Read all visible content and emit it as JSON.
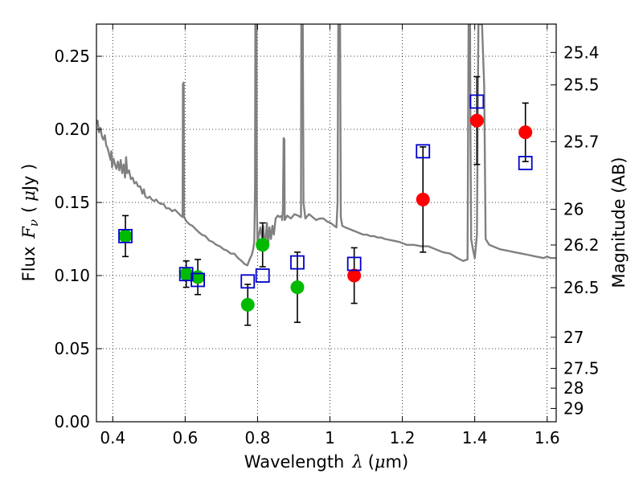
{
  "chart_data": {
    "type": "scatter",
    "xlabel": "Wavelength",
    "xlabel_symbol": "λ",
    "xlabel_unit_open": "(",
    "xlabel_unit_mu": "μ",
    "xlabel_unit_rest": "m)",
    "ylabel": "Flux",
    "ylabel_symbol": "F",
    "ylabel_sub": "ν",
    "ylabel_unit_open": "(",
    "ylabel_unit_mu": "μ",
    "ylabel_unit_rest": "Jy )",
    "y2label": "Magnitude (AB)",
    "xlim": [
      0.355,
      1.625
    ],
    "ylim": [
      0.0,
      0.272
    ],
    "grid": true,
    "legend": "none",
    "x_ticks": [
      0.4,
      0.6,
      0.8,
      1.0,
      1.2,
      1.4,
      1.6
    ],
    "x_tick_labels": [
      "0.4",
      "0.6",
      "0.8",
      "1",
      "1.2",
      "1.4",
      "1.6"
    ],
    "y_ticks": [
      0.0,
      0.05,
      0.1,
      0.15,
      0.2,
      0.25
    ],
    "y_tick_labels": [
      "0.00",
      "0.05",
      "0.10",
      "0.15",
      "0.20",
      "0.25"
    ],
    "mag_ticks": [
      {
        "label": "25.4",
        "flux": 0.2526
      },
      {
        "label": "25.5",
        "flux": 0.2304
      },
      {
        "label": "25.7",
        "flux": 0.1916
      },
      {
        "label": "26",
        "flux": 0.1453
      },
      {
        "label": "26.2",
        "flux": 0.1209
      },
      {
        "label": "26.5",
        "flux": 0.0917
      },
      {
        "label": "27",
        "flux": 0.0578
      },
      {
        "label": "27.5",
        "flux": 0.0365
      },
      {
        "label": "28",
        "flux": 0.023
      },
      {
        "label": "29",
        "flux": 0.0091
      }
    ],
    "colors": {
      "model": "#808080",
      "green": "#00bb00",
      "red": "#ff0000",
      "square": "#0000cc",
      "errorbar": "#000000"
    },
    "series": [
      {
        "marker": "square",
        "points": [
          {
            "x": 0.435,
            "y": 0.127
          },
          {
            "x": 0.603,
            "y": 0.101
          },
          {
            "x": 0.635,
            "y": 0.097
          },
          {
            "x": 0.773,
            "y": 0.096
          },
          {
            "x": 0.814,
            "y": 0.1
          },
          {
            "x": 0.91,
            "y": 0.109
          },
          {
            "x": 1.067,
            "y": 0.108
          },
          {
            "x": 1.257,
            "y": 0.185
          },
          {
            "x": 1.406,
            "y": 0.219
          },
          {
            "x": 1.54,
            "y": 0.177
          }
        ]
      },
      {
        "marker": "circle",
        "points": [
          {
            "x": 0.435,
            "y": 0.127,
            "err": 0.014,
            "color": "green"
          },
          {
            "x": 0.603,
            "y": 0.101,
            "err": 0.009,
            "color": "green"
          },
          {
            "x": 0.635,
            "y": 0.099,
            "err": 0.012,
            "color": "green"
          },
          {
            "x": 0.773,
            "y": 0.08,
            "err": 0.014,
            "color": "green"
          },
          {
            "x": 0.814,
            "y": 0.121,
            "err": 0.015,
            "color": "green"
          },
          {
            "x": 0.91,
            "y": 0.092,
            "err": 0.024,
            "color": "green"
          },
          {
            "x": 1.067,
            "y": 0.1,
            "err": 0.019,
            "color": "red"
          },
          {
            "x": 1.257,
            "y": 0.152,
            "err": 0.036,
            "color": "red"
          },
          {
            "x": 1.406,
            "y": 0.206,
            "err": 0.03,
            "color": "red"
          },
          {
            "x": 1.54,
            "y": 0.198,
            "err": 0.02,
            "color": "red"
          }
        ]
      },
      {
        "marker": "line",
        "points": [
          [
            0.355,
            0.204
          ],
          [
            0.358,
            0.206
          ],
          [
            0.362,
            0.198
          ],
          [
            0.366,
            0.201
          ],
          [
            0.37,
            0.195
          ],
          [
            0.374,
            0.193
          ],
          [
            0.378,
            0.196
          ],
          [
            0.382,
            0.189
          ],
          [
            0.386,
            0.187
          ],
          [
            0.39,
            0.183
          ],
          [
            0.394,
            0.179
          ],
          [
            0.396,
            0.185
          ],
          [
            0.398,
            0.174
          ],
          [
            0.402,
            0.18
          ],
          [
            0.406,
            0.176
          ],
          [
            0.41,
            0.173
          ],
          [
            0.414,
            0.178
          ],
          [
            0.418,
            0.172
          ],
          [
            0.422,
            0.179
          ],
          [
            0.426,
            0.17
          ],
          [
            0.43,
            0.176
          ],
          [
            0.434,
            0.167
          ],
          [
            0.437,
            0.181
          ],
          [
            0.44,
            0.17
          ],
          [
            0.445,
            0.172
          ],
          [
            0.45,
            0.166
          ],
          [
            0.455,
            0.167
          ],
          [
            0.46,
            0.163
          ],
          [
            0.465,
            0.164
          ],
          [
            0.47,
            0.161
          ],
          [
            0.476,
            0.161
          ],
          [
            0.482,
            0.156
          ],
          [
            0.486,
            0.159
          ],
          [
            0.49,
            0.154
          ],
          [
            0.496,
            0.153
          ],
          [
            0.502,
            0.154
          ],
          [
            0.508,
            0.152
          ],
          [
            0.514,
            0.151
          ],
          [
            0.52,
            0.152
          ],
          [
            0.526,
            0.15
          ],
          [
            0.532,
            0.149
          ],
          [
            0.54,
            0.149
          ],
          [
            0.548,
            0.146
          ],
          [
            0.556,
            0.146
          ],
          [
            0.564,
            0.144
          ],
          [
            0.572,
            0.145
          ],
          [
            0.58,
            0.143
          ],
          [
            0.588,
            0.141
          ],
          [
            0.593,
            0.14
          ],
          [
            0.594,
            0.231
          ],
          [
            0.596,
            0.232
          ],
          [
            0.597,
            0.14
          ],
          [
            0.604,
            0.137
          ],
          [
            0.612,
            0.135
          ],
          [
            0.62,
            0.134
          ],
          [
            0.628,
            0.132
          ],
          [
            0.636,
            0.13
          ],
          [
            0.646,
            0.128
          ],
          [
            0.656,
            0.127
          ],
          [
            0.666,
            0.124
          ],
          [
            0.676,
            0.123
          ],
          [
            0.686,
            0.121
          ],
          [
            0.696,
            0.12
          ],
          [
            0.706,
            0.118
          ],
          [
            0.716,
            0.117
          ],
          [
            0.726,
            0.115
          ],
          [
            0.736,
            0.115
          ],
          [
            0.746,
            0.112
          ],
          [
            0.756,
            0.11
          ],
          [
            0.764,
            0.108
          ],
          [
            0.772,
            0.107
          ],
          [
            0.778,
            0.111
          ],
          [
            0.784,
            0.114
          ],
          [
            0.788,
            0.118
          ],
          [
            0.791,
            0.123
          ],
          [
            0.793,
            0.16
          ],
          [
            0.794,
            0.272
          ],
          [
            0.797,
            0.272
          ],
          [
            0.798,
            0.15
          ],
          [
            0.8,
            0.122
          ],
          [
            0.804,
            0.128
          ],
          [
            0.808,
            0.133
          ],
          [
            0.812,
            0.126
          ],
          [
            0.816,
            0.134
          ],
          [
            0.819,
            0.117
          ],
          [
            0.822,
            0.125
          ],
          [
            0.826,
            0.136
          ],
          [
            0.829,
            0.12
          ],
          [
            0.833,
            0.133
          ],
          [
            0.837,
            0.125
          ],
          [
            0.841,
            0.134
          ],
          [
            0.845,
            0.128
          ],
          [
            0.85,
            0.139
          ],
          [
            0.856,
            0.141
          ],
          [
            0.862,
            0.14
          ],
          [
            0.867,
            0.141
          ],
          [
            0.868,
            0.138
          ],
          [
            0.87,
            0.145
          ],
          [
            0.872,
            0.194
          ],
          [
            0.874,
            0.193
          ],
          [
            0.875,
            0.138
          ],
          [
            0.882,
            0.141
          ],
          [
            0.892,
            0.139
          ],
          [
            0.902,
            0.142
          ],
          [
            0.912,
            0.141
          ],
          [
            0.918,
            0.14
          ],
          [
            0.92,
            0.14
          ],
          [
            0.921,
            0.272
          ],
          [
            0.925,
            0.272
          ],
          [
            0.927,
            0.15
          ],
          [
            0.932,
            0.139
          ],
          [
            0.942,
            0.142
          ],
          [
            0.952,
            0.14
          ],
          [
            0.962,
            0.138
          ],
          [
            0.972,
            0.139
          ],
          [
            0.982,
            0.139
          ],
          [
            0.992,
            0.137
          ],
          [
            1.002,
            0.136
          ],
          [
            1.012,
            0.134
          ],
          [
            1.018,
            0.133
          ],
          [
            1.021,
            0.15
          ],
          [
            1.023,
            0.272
          ],
          [
            1.028,
            0.272
          ],
          [
            1.03,
            0.14
          ],
          [
            1.034,
            0.134
          ],
          [
            1.042,
            0.133
          ],
          [
            1.052,
            0.132
          ],
          [
            1.062,
            0.131
          ],
          [
            1.072,
            0.13
          ],
          [
            1.082,
            0.129
          ],
          [
            1.092,
            0.128
          ],
          [
            1.102,
            0.128
          ],
          [
            1.112,
            0.127
          ],
          [
            1.122,
            0.127
          ],
          [
            1.132,
            0.126
          ],
          [
            1.142,
            0.126
          ],
          [
            1.152,
            0.125
          ],
          [
            1.172,
            0.124
          ],
          [
            1.192,
            0.123
          ],
          [
            1.212,
            0.121
          ],
          [
            1.232,
            0.121
          ],
          [
            1.252,
            0.12
          ],
          [
            1.272,
            0.12
          ],
          [
            1.292,
            0.118
          ],
          [
            1.312,
            0.116
          ],
          [
            1.332,
            0.115
          ],
          [
            1.352,
            0.112
          ],
          [
            1.368,
            0.11
          ],
          [
            1.38,
            0.111
          ],
          [
            1.383,
            0.272
          ],
          [
            1.387,
            0.272
          ],
          [
            1.388,
            0.2
          ],
          [
            1.39,
            0.125
          ],
          [
            1.395,
            0.118
          ],
          [
            1.4,
            0.112
          ],
          [
            1.406,
            0.128
          ],
          [
            1.41,
            0.272
          ],
          [
            1.42,
            0.272
          ],
          [
            1.426,
            0.23
          ],
          [
            1.43,
            0.125
          ],
          [
            1.44,
            0.121
          ],
          [
            1.45,
            0.12
          ],
          [
            1.47,
            0.118
          ],
          [
            1.49,
            0.117
          ],
          [
            1.51,
            0.116
          ],
          [
            1.53,
            0.115
          ],
          [
            1.55,
            0.114
          ],
          [
            1.57,
            0.113
          ],
          [
            1.59,
            0.112
          ],
          [
            1.6,
            0.113
          ],
          [
            1.61,
            0.112
          ],
          [
            1.625,
            0.112
          ]
        ]
      }
    ]
  }
}
